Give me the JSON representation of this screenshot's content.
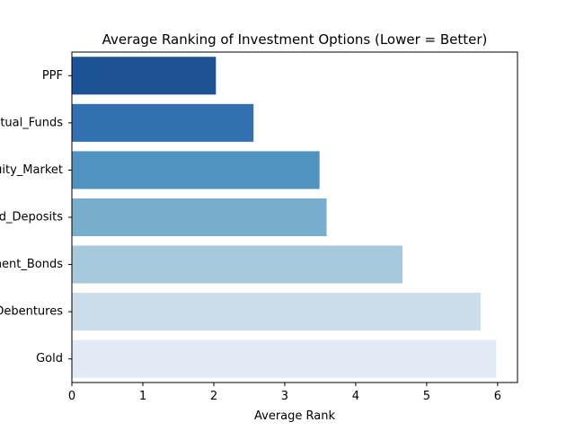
{
  "chart_data": {
    "type": "bar",
    "orientation": "horizontal",
    "title": "Average Ranking of Investment Options (Lower = Better)",
    "xlabel": "Average Rank",
    "ylabel": "",
    "xlim": [
      0,
      6.28
    ],
    "xticks": [
      0,
      1,
      2,
      3,
      4,
      5,
      6
    ],
    "grid": false,
    "categories": [
      "PPF",
      "Mutual_Funds",
      "Equity_Market",
      "Fixed_Deposits",
      "Government_Bonds",
      "Debentures",
      "Gold"
    ],
    "values": [
      2.03,
      2.56,
      3.49,
      3.59,
      4.66,
      5.76,
      5.98
    ],
    "colors": [
      "#1b5396",
      "#3171b2",
      "#5092c0",
      "#79adcd",
      "#a7c9dd",
      "#cbdcea",
      "#e2eaf5"
    ]
  }
}
